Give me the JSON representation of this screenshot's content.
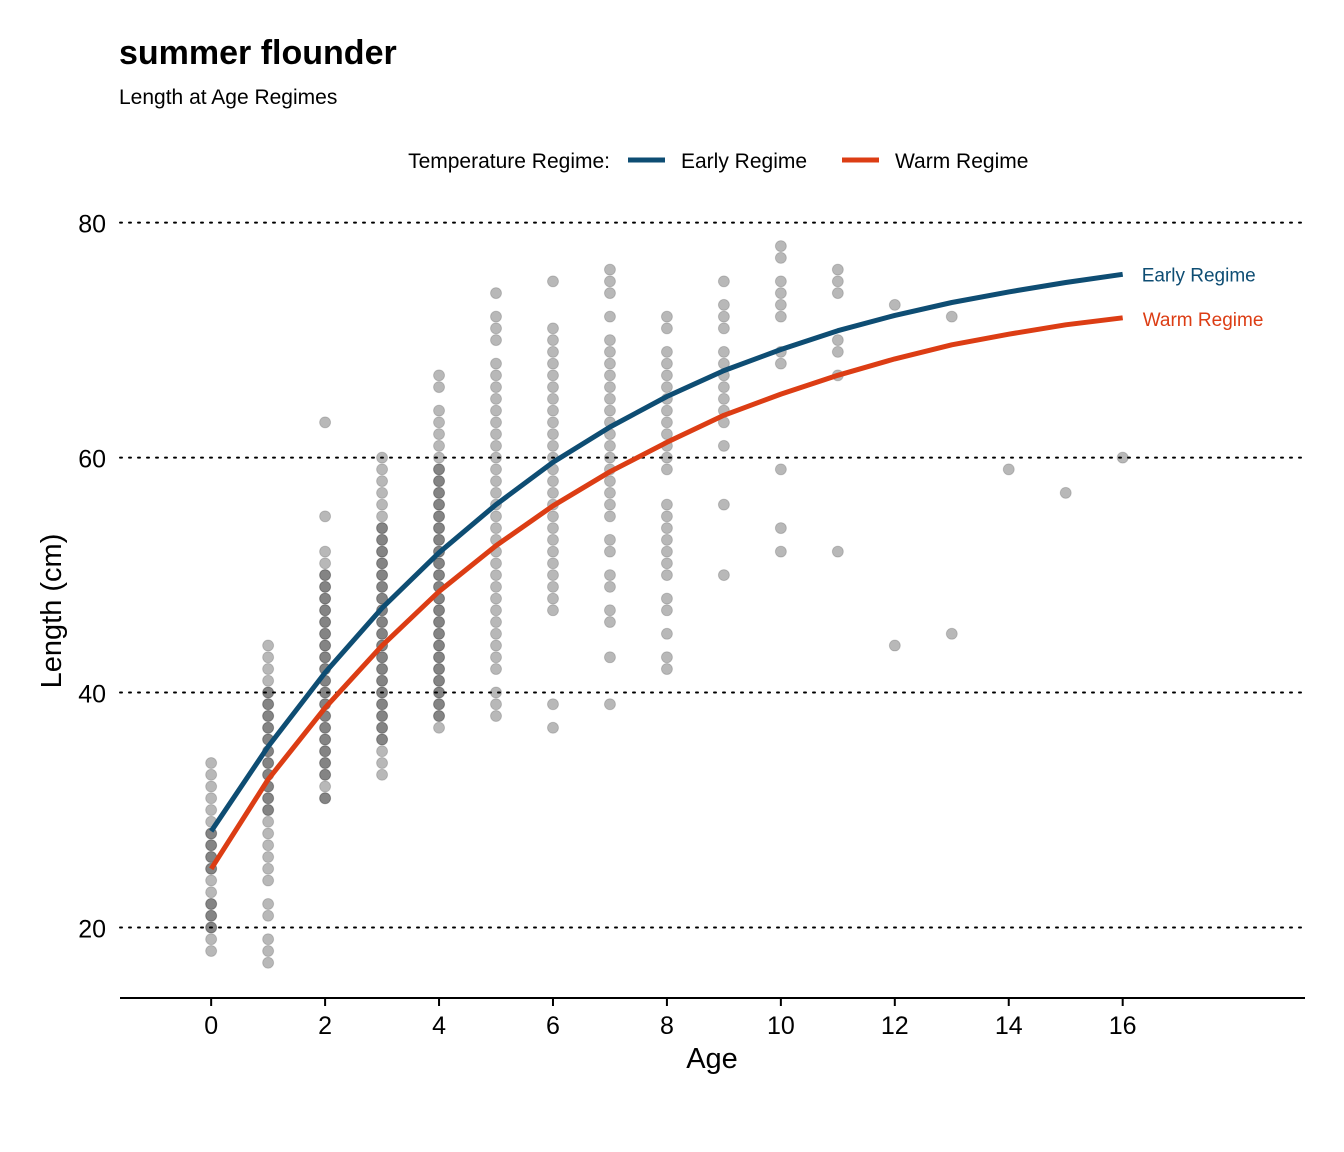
{
  "chart_data": {
    "type": "scatter",
    "title": "summer flounder",
    "subtitle": "Length at Age Regimes",
    "xlabel": "Age",
    "ylabel": "Length (cm)",
    "xlim": [
      -1.6,
      19.2
    ],
    "ylim": [
      14,
      81.5
    ],
    "xticks": [
      0,
      2,
      4,
      6,
      8,
      10,
      12,
      14,
      16
    ],
    "yticks": [
      20,
      40,
      60,
      80
    ],
    "grid": "horizontal dotted",
    "legend": {
      "title": "Temperature Regime:",
      "placement": "top",
      "entries": [
        "Early Regime",
        "Warm Regime"
      ]
    },
    "colors": {
      "early": "#0e4d73",
      "warm": "#dc3d14",
      "points": "#000000"
    },
    "points": [
      {
        "age": 0,
        "lengths": [
          18,
          19,
          20,
          20,
          21,
          21,
          22,
          22,
          23,
          24,
          25,
          25,
          26,
          26,
          27,
          27,
          28,
          28,
          29,
          30,
          31,
          32,
          33,
          34
        ]
      },
      {
        "age": 1,
        "lengths": [
          17,
          18,
          19,
          21,
          22,
          24,
          25,
          26,
          27,
          28,
          29,
          30,
          30,
          31,
          31,
          32,
          32,
          33,
          33,
          34,
          34,
          35,
          35,
          36,
          36,
          37,
          37,
          38,
          38,
          39,
          39,
          40,
          40,
          41,
          42,
          43,
          44
        ]
      },
      {
        "age": 2,
        "lengths": [
          31,
          31,
          32,
          33,
          33,
          34,
          34,
          35,
          35,
          36,
          36,
          37,
          37,
          38,
          38,
          39,
          39,
          40,
          40,
          41,
          41,
          42,
          42,
          43,
          43,
          44,
          44,
          45,
          45,
          46,
          46,
          47,
          47,
          48,
          48,
          49,
          49,
          50,
          50,
          51,
          52,
          55,
          63
        ]
      },
      {
        "age": 3,
        "lengths": [
          33,
          34,
          35,
          36,
          36,
          37,
          37,
          38,
          38,
          39,
          39,
          40,
          40,
          41,
          41,
          42,
          42,
          43,
          43,
          44,
          44,
          45,
          45,
          46,
          46,
          47,
          47,
          48,
          48,
          49,
          49,
          50,
          50,
          51,
          51,
          52,
          52,
          53,
          53,
          54,
          54,
          55,
          56,
          57,
          58,
          59,
          60
        ]
      },
      {
        "age": 4,
        "lengths": [
          37,
          38,
          38,
          39,
          39,
          40,
          40,
          41,
          41,
          42,
          42,
          43,
          43,
          44,
          44,
          45,
          45,
          46,
          46,
          47,
          47,
          48,
          48,
          49,
          49,
          50,
          50,
          51,
          51,
          52,
          52,
          53,
          53,
          54,
          54,
          55,
          55,
          56,
          56,
          57,
          57,
          58,
          58,
          59,
          59,
          60,
          61,
          62,
          63,
          64,
          66,
          67
        ]
      },
      {
        "age": 5,
        "lengths": [
          38,
          39,
          40,
          42,
          43,
          44,
          45,
          46,
          47,
          48,
          49,
          50,
          51,
          52,
          53,
          54,
          55,
          56,
          57,
          58,
          59,
          60,
          61,
          62,
          63,
          64,
          65,
          66,
          67,
          68,
          70,
          71,
          72,
          74
        ]
      },
      {
        "age": 6,
        "lengths": [
          37,
          39,
          47,
          48,
          49,
          50,
          51,
          52,
          53,
          54,
          55,
          56,
          57,
          58,
          59,
          60,
          61,
          62,
          63,
          64,
          65,
          66,
          67,
          68,
          69,
          70,
          71,
          75
        ]
      },
      {
        "age": 7,
        "lengths": [
          39,
          43,
          46,
          47,
          49,
          50,
          52,
          53,
          55,
          56,
          57,
          58,
          59,
          60,
          61,
          62,
          63,
          64,
          65,
          66,
          67,
          68,
          69,
          70,
          72,
          74,
          75,
          76
        ]
      },
      {
        "age": 8,
        "lengths": [
          42,
          43,
          45,
          47,
          48,
          50,
          51,
          52,
          53,
          54,
          55,
          56,
          59,
          60,
          61,
          62,
          63,
          64,
          65,
          66,
          67,
          68,
          69,
          71,
          72
        ]
      },
      {
        "age": 9,
        "lengths": [
          50,
          56,
          61,
          63,
          64,
          65,
          66,
          67,
          68,
          69,
          71,
          72,
          73,
          75
        ]
      },
      {
        "age": 10,
        "lengths": [
          52,
          54,
          59,
          68,
          69,
          72,
          73,
          74,
          75,
          77,
          78
        ]
      },
      {
        "age": 11,
        "lengths": [
          52,
          67,
          69,
          70,
          74,
          75,
          76
        ]
      },
      {
        "age": 12,
        "lengths": [
          44,
          73
        ]
      },
      {
        "age": 13,
        "lengths": [
          45,
          72
        ]
      },
      {
        "age": 14,
        "lengths": [
          59
        ]
      },
      {
        "age": 15,
        "lengths": [
          57
        ]
      },
      {
        "age": 16,
        "lengths": [
          60
        ]
      }
    ],
    "series": [
      {
        "name": "Early Regime",
        "x": [
          0,
          1,
          2,
          3,
          4,
          5,
          6,
          7,
          8,
          9,
          10,
          11,
          12,
          13,
          14,
          15,
          16
        ],
        "y": [
          28.2,
          35.4,
          41.7,
          47.2,
          51.9,
          56.0,
          59.6,
          62.6,
          65.2,
          67.4,
          69.2,
          70.8,
          72.1,
          73.2,
          74.1,
          74.9,
          75.6
        ]
      },
      {
        "name": "Warm Regime",
        "x": [
          0,
          1,
          2,
          3,
          4,
          5,
          6,
          7,
          8,
          9,
          10,
          11,
          12,
          13,
          14,
          15,
          16
        ],
        "y": [
          25.0,
          32.6,
          38.7,
          44.0,
          48.6,
          52.5,
          55.9,
          58.8,
          61.3,
          63.6,
          65.4,
          67.0,
          68.4,
          69.6,
          70.5,
          71.3,
          71.9
        ]
      }
    ]
  }
}
